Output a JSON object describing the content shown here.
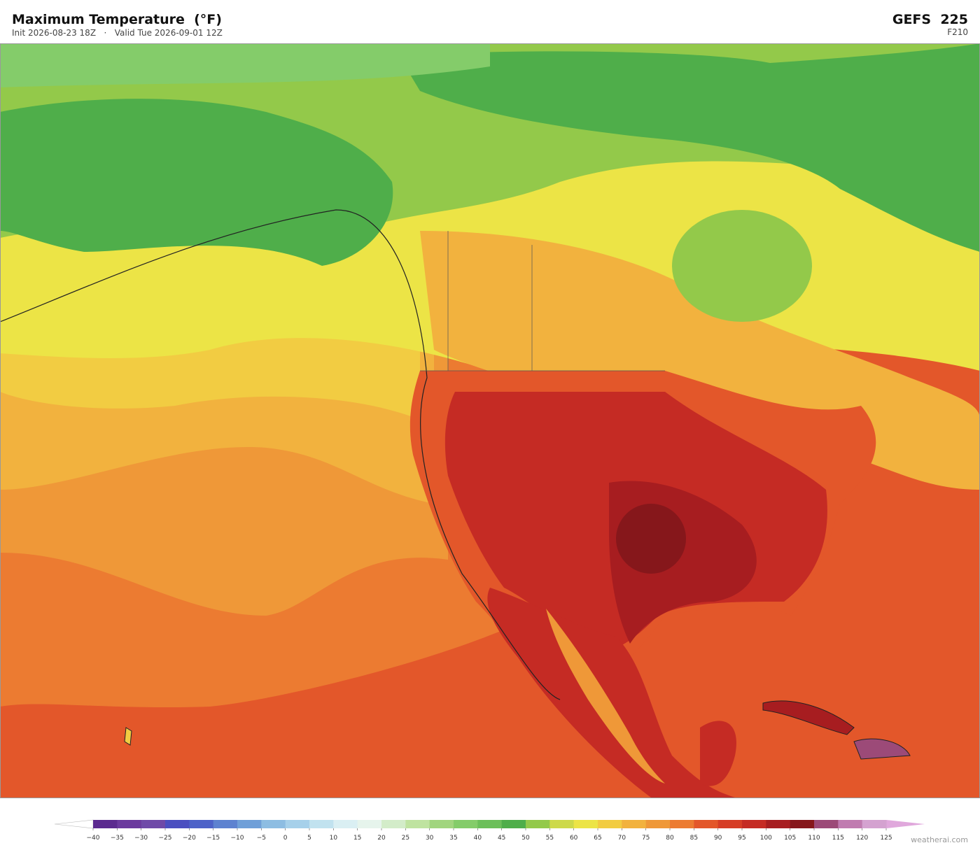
{
  "header": {
    "title": "Maximum Temperature  (°F)",
    "subtitle": "Init 2026-08-23 18Z   ·   Valid Tue 2026-09-01 12Z",
    "model": "GEFS  225",
    "forecast_hour": "F210"
  },
  "colorbar": {
    "ticks": [
      {
        "value": -40,
        "label": "−40"
      },
      {
        "value": -35,
        "label": "−35"
      },
      {
        "value": -30,
        "label": "−30"
      },
      {
        "value": -25,
        "label": "−25"
      },
      {
        "value": -20,
        "label": "−20"
      },
      {
        "value": -15,
        "label": "−15"
      },
      {
        "value": -10,
        "label": "−10"
      },
      {
        "value": -5,
        "label": "−5"
      },
      0,
      5,
      10,
      15,
      20,
      25,
      30,
      35,
      40,
      45,
      50,
      55,
      60,
      65,
      70,
      75,
      80,
      85,
      90,
      95,
      100,
      105,
      110,
      115,
      120,
      125
    ],
    "colors": [
      "#5b2a8f",
      "#6b3a9e",
      "#6f4aa8",
      "#4b4fc0",
      "#4d62c8",
      "#5d82d0",
      "#6f9fd8",
      "#8dbde2",
      "#a6d0ea",
      "#c1e2ef",
      "#daeff3",
      "#e6f4ec",
      "#d3ecc9",
      "#bfe3a0",
      "#a1d57e",
      "#84cc6a",
      "#6cbf5a",
      "#4fae4a",
      "#93c94a",
      "#cdd94a",
      "#ece446",
      "#f2cc42",
      "#f2b23e",
      "#ef9838",
      "#ec7b31",
      "#e3572a",
      "#d63d26",
      "#c52b24",
      "#a71d20",
      "#86171b",
      "#9c4a78",
      "#c07bb0",
      "#d4a2d0"
    ],
    "under_color": "#ffffff",
    "over_color": "#e0a8dc"
  },
  "watermark": "weatherai.com"
}
